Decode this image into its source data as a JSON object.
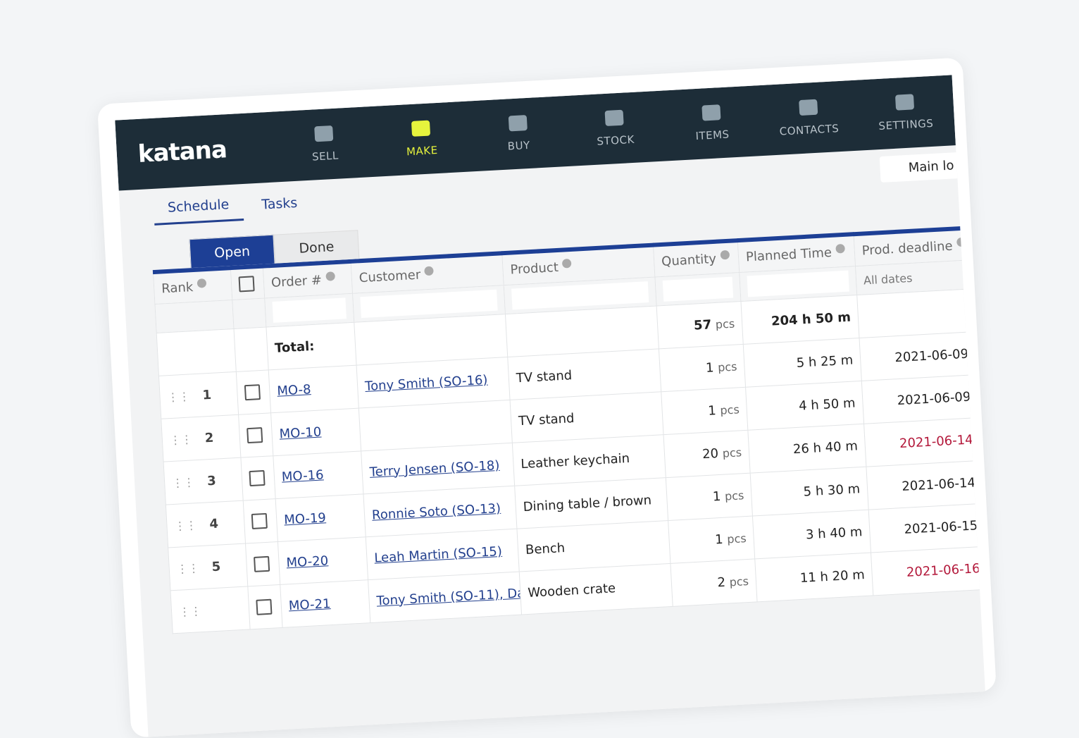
{
  "nav": {
    "logo": "katana",
    "items": [
      "SELL",
      "MAKE",
      "BUY",
      "STOCK",
      "ITEMS",
      "CONTACTS",
      "SETTINGS"
    ]
  },
  "tabs": [
    "Schedule",
    "Tasks"
  ],
  "location": "Main lo",
  "subtabs": [
    "Open",
    "Done"
  ],
  "table": {
    "headers": [
      "Rank",
      "Order #",
      "Customer",
      "Product",
      "Quantity",
      "Planned Time",
      "Prod. deadline"
    ],
    "date_filter": "All dates",
    "totals": {
      "label": "Total:",
      "quantity": 57,
      "unit": "pcs",
      "time": "204 h 50 m"
    },
    "rows": [
      {
        "rank": 1,
        "order": "MO-8",
        "customer": "Tony Smith (SO-16)",
        "product": "TV stand",
        "quantity": 1,
        "unit": "pcs",
        "time": "5 h 25 m",
        "deadline": "2021-06-09",
        "late": false
      },
      {
        "rank": 2,
        "order": "MO-10",
        "customer": null,
        "product": "TV stand",
        "quantity": 1,
        "unit": "pcs",
        "time": "4 h 50 m",
        "deadline": "2021-06-09",
        "late": false
      },
      {
        "rank": 3,
        "order": "MO-16",
        "customer": "Terry Jensen (SO-18)",
        "product": "Leather keychain",
        "quantity": 20,
        "unit": "pcs",
        "time": "26 h 40 m",
        "deadline": "2021-06-14",
        "late": true
      },
      {
        "rank": 4,
        "order": "MO-19",
        "customer": "Ronnie Soto (SO-13)",
        "product": "Dining table / brown",
        "quantity": 1,
        "unit": "pcs",
        "time": "5 h 30 m",
        "deadline": "2021-06-14",
        "late": false
      },
      {
        "rank": 5,
        "order": "MO-20",
        "customer": "Leah Martin (SO-15)",
        "product": "Bench",
        "quantity": 1,
        "unit": "pcs",
        "time": "3 h 40 m",
        "deadline": "2021-06-15",
        "late": false
      },
      {
        "rank": null,
        "order": "MO-21",
        "customer": "Tony Smith (SO-11), Da",
        "product": "Wooden crate",
        "quantity": 2,
        "unit": "pcs",
        "time": "11 h 20 m",
        "deadline": "2021-06-16",
        "late": true
      }
    ]
  }
}
